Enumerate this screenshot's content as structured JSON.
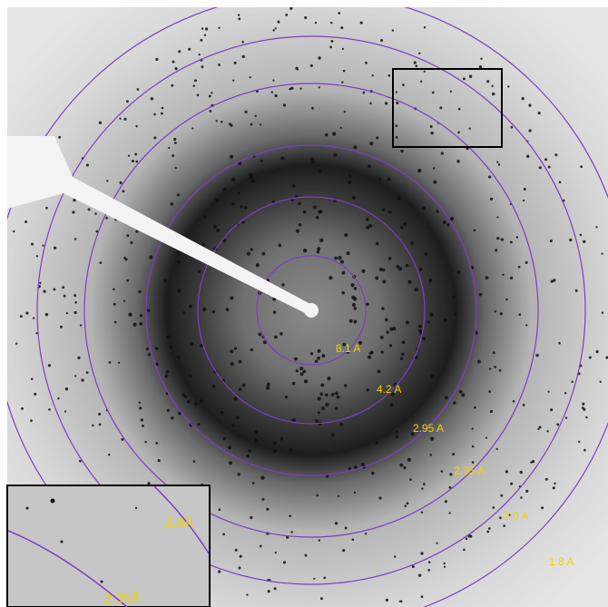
{
  "rings": [
    "8.1 A",
    "4.2 A",
    "2.95 A",
    "2.35 A",
    "2.0 A",
    "1.8 A"
  ],
  "inset": {
    "labels": [
      "2.0Å",
      "2.35Å"
    ]
  }
}
